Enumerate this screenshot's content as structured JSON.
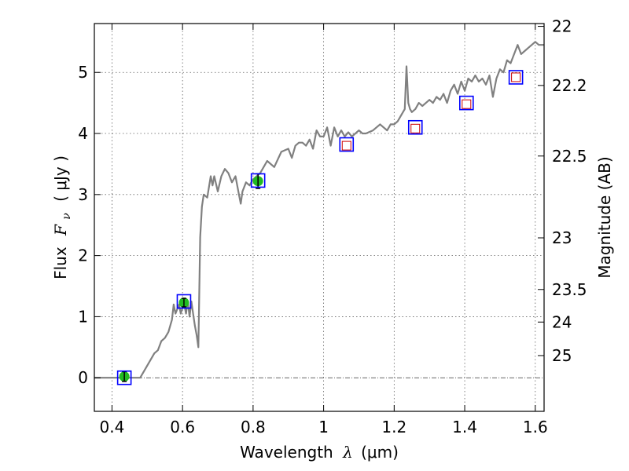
{
  "chart_data": {
    "type": "line",
    "xlabel_prefix": "Wavelength",
    "xlabel_symbol": "λ",
    "xlabel_unit": "(μm)",
    "ylabel_prefix": "Flux",
    "ylabel_symbol": "F",
    "ylabel_sub": "ν",
    "ylabel_unit": "( μJy )",
    "y2label": "Magnitude (AB)",
    "xlim": [
      0.35,
      1.625
    ],
    "ylim": [
      -0.55,
      5.8
    ],
    "xticks": [
      0.4,
      0.6,
      0.8,
      1.0,
      1.2,
      1.4,
      1.6
    ],
    "xtick_labels": [
      "0.4",
      "0.6",
      "0.8",
      "1",
      "1.2",
      "1.4",
      "1.6"
    ],
    "yticks": [
      0,
      1,
      2,
      3,
      4,
      5
    ],
    "ytick_labels": [
      "0",
      "1",
      "2",
      "3",
      "4",
      "5"
    ],
    "y2ticks": [
      {
        "label": "22",
        "mag": 22.0
      },
      {
        "label": "22.2",
        "mag": 22.2
      },
      {
        "label": "22.5",
        "mag": 22.5
      },
      {
        "label": "23",
        "mag": 23.0
      },
      {
        "label": "23.5",
        "mag": 23.5
      },
      {
        "label": "24",
        "mag": 24.0
      },
      {
        "label": "25",
        "mag": 25.0
      }
    ],
    "grid": true,
    "zero_line": true,
    "spectrum": {
      "color": "#808080",
      "x": [
        0.35,
        0.48,
        0.5,
        0.52,
        0.53,
        0.54,
        0.55,
        0.56,
        0.57,
        0.575,
        0.58,
        0.59,
        0.595,
        0.6,
        0.605,
        0.61,
        0.615,
        0.62,
        0.625,
        0.63,
        0.635,
        0.64,
        0.645,
        0.65,
        0.655,
        0.66,
        0.67,
        0.68,
        0.685,
        0.69,
        0.7,
        0.71,
        0.72,
        0.73,
        0.74,
        0.75,
        0.76,
        0.765,
        0.77,
        0.78,
        0.79,
        0.8,
        0.82,
        0.84,
        0.86,
        0.88,
        0.9,
        0.91,
        0.92,
        0.93,
        0.94,
        0.95,
        0.96,
        0.97,
        0.98,
        0.99,
        1.0,
        1.01,
        1.02,
        1.03,
        1.04,
        1.05,
        1.06,
        1.07,
        1.08,
        1.09,
        1.1,
        1.11,
        1.12,
        1.14,
        1.16,
        1.17,
        1.18,
        1.19,
        1.2,
        1.21,
        1.22,
        1.23,
        1.235,
        1.24,
        1.245,
        1.25,
        1.26,
        1.27,
        1.28,
        1.29,
        1.3,
        1.31,
        1.32,
        1.33,
        1.34,
        1.35,
        1.36,
        1.37,
        1.38,
        1.39,
        1.4,
        1.41,
        1.42,
        1.43,
        1.44,
        1.45,
        1.46,
        1.47,
        1.48,
        1.49,
        1.5,
        1.51,
        1.52,
        1.53,
        1.54,
        1.55,
        1.56,
        1.57,
        1.58,
        1.59,
        1.6,
        1.61,
        1.625
      ],
      "y": [
        0.0,
        0.0,
        0.2,
        0.4,
        0.45,
        0.6,
        0.65,
        0.75,
        0.95,
        1.2,
        1.05,
        1.2,
        1.05,
        1.15,
        1.2,
        1.05,
        1.25,
        1.0,
        1.25,
        1.05,
        0.85,
        0.7,
        0.5,
        2.3,
        2.8,
        3.0,
        2.95,
        3.3,
        3.15,
        3.3,
        3.05,
        3.3,
        3.42,
        3.35,
        3.2,
        3.3,
        3.0,
        2.85,
        3.05,
        3.2,
        3.15,
        3.25,
        3.35,
        3.55,
        3.45,
        3.7,
        3.75,
        3.6,
        3.8,
        3.85,
        3.85,
        3.8,
        3.9,
        3.75,
        4.05,
        3.95,
        3.95,
        4.1,
        3.8,
        4.1,
        3.95,
        4.05,
        3.95,
        4.02,
        3.95,
        4.0,
        4.05,
        4.0,
        4.0,
        4.05,
        4.15,
        4.1,
        4.05,
        4.15,
        4.15,
        4.2,
        4.3,
        4.4,
        5.1,
        4.5,
        4.4,
        4.35,
        4.4,
        4.5,
        4.45,
        4.5,
        4.55,
        4.5,
        4.6,
        4.55,
        4.65,
        4.5,
        4.7,
        4.8,
        4.65,
        4.85,
        4.7,
        4.9,
        4.85,
        4.95,
        4.85,
        4.9,
        4.8,
        4.95,
        4.6,
        4.9,
        5.05,
        5.0,
        5.2,
        5.15,
        5.3,
        5.45,
        5.3,
        5.35,
        5.4,
        5.45,
        5.5,
        5.45,
        5.45
      ]
    },
    "filled_points": [
      {
        "x": 0.435,
        "y": 0.02,
        "err": 0.08
      },
      {
        "x": 0.604,
        "y": 1.23,
        "err": 0.07
      },
      {
        "x": 0.814,
        "y": 3.22,
        "err": 0.12
      }
    ],
    "model_boxes": [
      {
        "x": 0.435,
        "y": 0.0
      },
      {
        "x": 0.604,
        "y": 1.25
      },
      {
        "x": 0.814,
        "y": 3.23
      },
      {
        "x": 1.065,
        "y": 3.82
      },
      {
        "x": 1.26,
        "y": 4.1
      },
      {
        "x": 1.405,
        "y": 4.5
      },
      {
        "x": 1.545,
        "y": 4.92
      }
    ],
    "open_points": [
      {
        "x": 1.065,
        "y": 3.8
      },
      {
        "x": 1.26,
        "y": 4.08
      },
      {
        "x": 1.405,
        "y": 4.48
      },
      {
        "x": 1.545,
        "y": 4.92
      }
    ],
    "colors": {
      "spectrum": "#808080",
      "filled_point": "#22bb22",
      "model_box": "#0000ff",
      "open_point": "#cc0000",
      "grid": "#606060"
    }
  }
}
